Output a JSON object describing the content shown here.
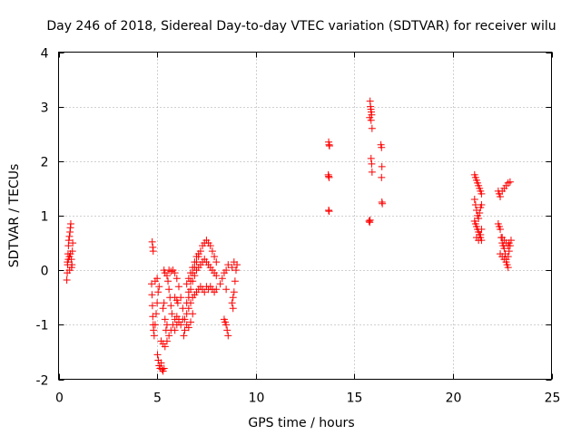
{
  "chart_data": {
    "type": "scatter",
    "title": "Day 246 of 2018, Sidereal Day-to-day VTEC variation (SDTVAR) for receiver wilu",
    "xlabel": "GPS time / hours",
    "ylabel": "SDTVAR / TECUs",
    "xlim": [
      0,
      25
    ],
    "ylim": [
      -2,
      4
    ],
    "xticks": [
      "0",
      "5",
      "10",
      "15",
      "20",
      "25"
    ],
    "yticks": [
      "-2",
      "-1",
      "0",
      "1",
      "2",
      "3",
      "4"
    ],
    "grid": true,
    "marker": "+",
    "color": "#ff0000",
    "series": [
      {
        "name": "SDTVAR",
        "points": [
          [
            0.42,
            -0.18
          ],
          [
            0.44,
            -0.05
          ],
          [
            0.46,
            0.1
          ],
          [
            0.48,
            0.3
          ],
          [
            0.5,
            0.45
          ],
          [
            0.52,
            0.55
          ],
          [
            0.55,
            0.62
          ],
          [
            0.58,
            0.7
          ],
          [
            0.6,
            0.78
          ],
          [
            0.62,
            0.85
          ],
          [
            0.45,
            0.15
          ],
          [
            0.5,
            0.2
          ],
          [
            0.55,
            0.25
          ],
          [
            0.6,
            0.3
          ],
          [
            0.65,
            0.2
          ],
          [
            0.68,
            0.1
          ],
          [
            0.7,
            0.35
          ],
          [
            0.72,
            0.5
          ],
          [
            0.66,
            0.05
          ],
          [
            0.56,
            0.0
          ],
          [
            4.75,
            0.52
          ],
          [
            4.78,
            0.42
          ],
          [
            4.8,
            0.35
          ],
          [
            4.72,
            -0.25
          ],
          [
            4.74,
            -0.45
          ],
          [
            4.76,
            -0.65
          ],
          [
            4.78,
            -0.85
          ],
          [
            4.8,
            -1.0
          ],
          [
            4.82,
            -1.1
          ],
          [
            4.85,
            -1.2
          ],
          [
            4.9,
            -1.0
          ],
          [
            4.95,
            -0.8
          ],
          [
            5.0,
            -0.6
          ],
          [
            5.05,
            -0.4
          ],
          [
            5.1,
            -0.3
          ],
          [
            4.9,
            -0.2
          ],
          [
            5.0,
            -0.15
          ],
          [
            5.02,
            -1.55
          ],
          [
            5.06,
            -1.65
          ],
          [
            5.1,
            -1.75
          ],
          [
            5.15,
            -1.8
          ],
          [
            5.2,
            -1.7
          ],
          [
            5.25,
            -1.82
          ],
          [
            5.3,
            -1.85
          ],
          [
            5.35,
            -1.8
          ],
          [
            5.2,
            -1.3
          ],
          [
            5.3,
            -1.35
          ],
          [
            5.4,
            -1.4
          ],
          [
            5.5,
            -1.3
          ],
          [
            5.6,
            -1.2
          ],
          [
            5.7,
            -1.1
          ],
          [
            5.8,
            -1.0
          ],
          [
            5.9,
            -0.9
          ],
          [
            6.0,
            -0.85
          ],
          [
            6.1,
            -0.9
          ],
          [
            5.3,
            -0.7
          ],
          [
            5.35,
            -0.6
          ],
          [
            5.4,
            -0.9
          ],
          [
            5.45,
            -1.1
          ],
          [
            5.5,
            -1.0
          ],
          [
            5.35,
            0.0
          ],
          [
            5.4,
            -0.05
          ],
          [
            5.5,
            -0.1
          ],
          [
            5.55,
            -0.2
          ],
          [
            5.6,
            -0.35
          ],
          [
            5.65,
            -0.5
          ],
          [
            5.7,
            -0.65
          ],
          [
            5.75,
            -0.8
          ],
          [
            5.6,
            0.0
          ],
          [
            5.7,
            -0.02
          ],
          [
            5.8,
            0.0
          ],
          [
            5.9,
            -0.05
          ],
          [
            6.0,
            -0.15
          ],
          [
            6.1,
            -0.3
          ],
          [
            6.2,
            -0.5
          ],
          [
            6.3,
            -0.7
          ],
          [
            6.4,
            -0.9
          ],
          [
            6.5,
            -1.0
          ],
          [
            6.6,
            -1.05
          ],
          [
            6.7,
            -0.95
          ],
          [
            6.8,
            -0.8
          ],
          [
            5.9,
            -1.1
          ],
          [
            6.0,
            -1.0
          ],
          [
            6.1,
            -0.95
          ],
          [
            6.2,
            -1.0
          ],
          [
            6.3,
            -0.9
          ],
          [
            6.35,
            -1.2
          ],
          [
            6.4,
            -1.1
          ],
          [
            6.5,
            -0.8
          ],
          [
            5.9,
            -0.5
          ],
          [
            6.0,
            -0.55
          ],
          [
            6.05,
            -0.6
          ],
          [
            6.5,
            -0.6
          ],
          [
            6.6,
            -0.4
          ],
          [
            6.7,
            -0.2
          ],
          [
            6.8,
            -0.05
          ],
          [
            6.9,
            0.05
          ],
          [
            7.0,
            0.15
          ],
          [
            7.1,
            0.25
          ],
          [
            7.2,
            0.35
          ],
          [
            7.3,
            0.45
          ],
          [
            7.4,
            0.5
          ],
          [
            7.5,
            0.55
          ],
          [
            7.6,
            0.5
          ],
          [
            7.7,
            0.45
          ],
          [
            7.8,
            0.35
          ],
          [
            7.9,
            0.25
          ],
          [
            8.0,
            0.15
          ],
          [
            6.6,
            -0.5
          ],
          [
            6.7,
            -0.35
          ],
          [
            6.8,
            -0.2
          ],
          [
            6.9,
            -0.1
          ],
          [
            7.0,
            0.0
          ],
          [
            7.1,
            0.05
          ],
          [
            7.2,
            0.1
          ],
          [
            7.3,
            0.15
          ],
          [
            7.4,
            0.2
          ],
          [
            7.5,
            0.15
          ],
          [
            7.6,
            0.1
          ],
          [
            7.7,
            0.05
          ],
          [
            7.8,
            0.0
          ],
          [
            7.9,
            -0.05
          ],
          [
            8.0,
            -0.1
          ],
          [
            6.6,
            -0.7
          ],
          [
            6.7,
            -0.6
          ],
          [
            6.8,
            -0.5
          ],
          [
            6.9,
            -0.45
          ],
          [
            7.0,
            -0.4
          ],
          [
            7.1,
            -0.35
          ],
          [
            7.2,
            -0.3
          ],
          [
            7.3,
            -0.35
          ],
          [
            7.4,
            -0.4
          ],
          [
            7.5,
            -0.3
          ],
          [
            7.6,
            -0.35
          ],
          [
            7.7,
            -0.3
          ],
          [
            7.8,
            -0.35
          ],
          [
            7.9,
            -0.4
          ],
          [
            8.0,
            -0.35
          ],
          [
            6.5,
            -0.25
          ],
          [
            6.6,
            -0.15
          ],
          [
            6.7,
            -0.05
          ],
          [
            6.8,
            0.05
          ],
          [
            6.9,
            0.15
          ],
          [
            7.0,
            0.25
          ],
          [
            7.1,
            0.3
          ],
          [
            8.2,
            -0.25
          ],
          [
            8.3,
            -0.15
          ],
          [
            8.4,
            -0.05
          ],
          [
            8.5,
            0.0
          ],
          [
            8.6,
            0.1
          ],
          [
            8.5,
            -0.35
          ],
          [
            8.4,
            -0.9
          ],
          [
            8.5,
            -1.0
          ],
          [
            8.55,
            -1.1
          ],
          [
            8.6,
            -1.2
          ],
          [
            8.45,
            -0.95
          ],
          [
            8.8,
            -0.6
          ],
          [
            8.85,
            -0.5
          ],
          [
            8.9,
            -0.4
          ],
          [
            8.95,
            -0.2
          ],
          [
            9.0,
            0.0
          ],
          [
            9.05,
            0.1
          ],
          [
            8.8,
            0.05
          ],
          [
            8.9,
            0.15
          ],
          [
            8.85,
            -0.7
          ],
          [
            13.7,
            2.35
          ],
          [
            13.72,
            2.3
          ],
          [
            13.74,
            2.28
          ],
          [
            13.68,
            1.75
          ],
          [
            13.7,
            1.72
          ],
          [
            13.72,
            1.7
          ],
          [
            13.7,
            1.1
          ],
          [
            13.72,
            1.08
          ],
          [
            15.8,
            3.1
          ],
          [
            15.82,
            3.0
          ],
          [
            15.84,
            2.95
          ],
          [
            15.86,
            2.9
          ],
          [
            15.88,
            2.85
          ],
          [
            15.85,
            2.75
          ],
          [
            15.9,
            2.6
          ],
          [
            15.78,
            2.8
          ],
          [
            15.85,
            2.05
          ],
          [
            15.88,
            1.95
          ],
          [
            15.9,
            1.8
          ],
          [
            15.75,
            0.9
          ],
          [
            15.78,
            0.88
          ],
          [
            15.8,
            0.92
          ],
          [
            16.35,
            2.3
          ],
          [
            16.38,
            2.25
          ],
          [
            16.4,
            1.9
          ],
          [
            16.38,
            1.7
          ],
          [
            16.4,
            1.25
          ],
          [
            16.42,
            1.22
          ],
          [
            21.1,
            1.75
          ],
          [
            21.15,
            1.7
          ],
          [
            21.2,
            1.65
          ],
          [
            21.25,
            1.6
          ],
          [
            21.3,
            1.55
          ],
          [
            21.35,
            1.5
          ],
          [
            21.4,
            1.45
          ],
          [
            21.45,
            1.4
          ],
          [
            21.1,
            1.3
          ],
          [
            21.15,
            1.2
          ],
          [
            21.2,
            1.1
          ],
          [
            21.25,
            1.0
          ],
          [
            21.3,
            0.95
          ],
          [
            21.35,
            1.05
          ],
          [
            21.4,
            1.15
          ],
          [
            21.45,
            1.2
          ],
          [
            21.1,
            0.9
          ],
          [
            21.15,
            0.85
          ],
          [
            21.2,
            0.8
          ],
          [
            21.25,
            0.75
          ],
          [
            21.3,
            0.7
          ],
          [
            21.35,
            0.65
          ],
          [
            21.4,
            0.6
          ],
          [
            21.45,
            0.55
          ],
          [
            21.2,
            0.6
          ],
          [
            21.3,
            0.55
          ],
          [
            21.4,
            0.65
          ],
          [
            21.45,
            0.75
          ],
          [
            22.3,
            1.45
          ],
          [
            22.35,
            1.4
          ],
          [
            22.4,
            1.35
          ],
          [
            22.5,
            1.45
          ],
          [
            22.6,
            1.5
          ],
          [
            22.7,
            1.55
          ],
          [
            22.8,
            1.6
          ],
          [
            22.9,
            1.62
          ],
          [
            22.3,
            0.85
          ],
          [
            22.35,
            0.8
          ],
          [
            22.4,
            0.75
          ],
          [
            22.45,
            0.6
          ],
          [
            22.5,
            0.5
          ],
          [
            22.55,
            0.45
          ],
          [
            22.6,
            0.4
          ],
          [
            22.65,
            0.3
          ],
          [
            22.7,
            0.2
          ],
          [
            22.75,
            0.1
          ],
          [
            22.8,
            0.05
          ],
          [
            22.4,
            0.3
          ],
          [
            22.5,
            0.25
          ],
          [
            22.6,
            0.2
          ],
          [
            22.7,
            0.15
          ],
          [
            22.8,
            0.25
          ],
          [
            22.85,
            0.35
          ],
          [
            22.9,
            0.45
          ],
          [
            22.95,
            0.55
          ],
          [
            22.5,
            0.6
          ],
          [
            22.6,
            0.55
          ],
          [
            22.7,
            0.5
          ],
          [
            22.8,
            0.45
          ],
          [
            22.85,
            0.5
          ]
        ]
      }
    ]
  }
}
